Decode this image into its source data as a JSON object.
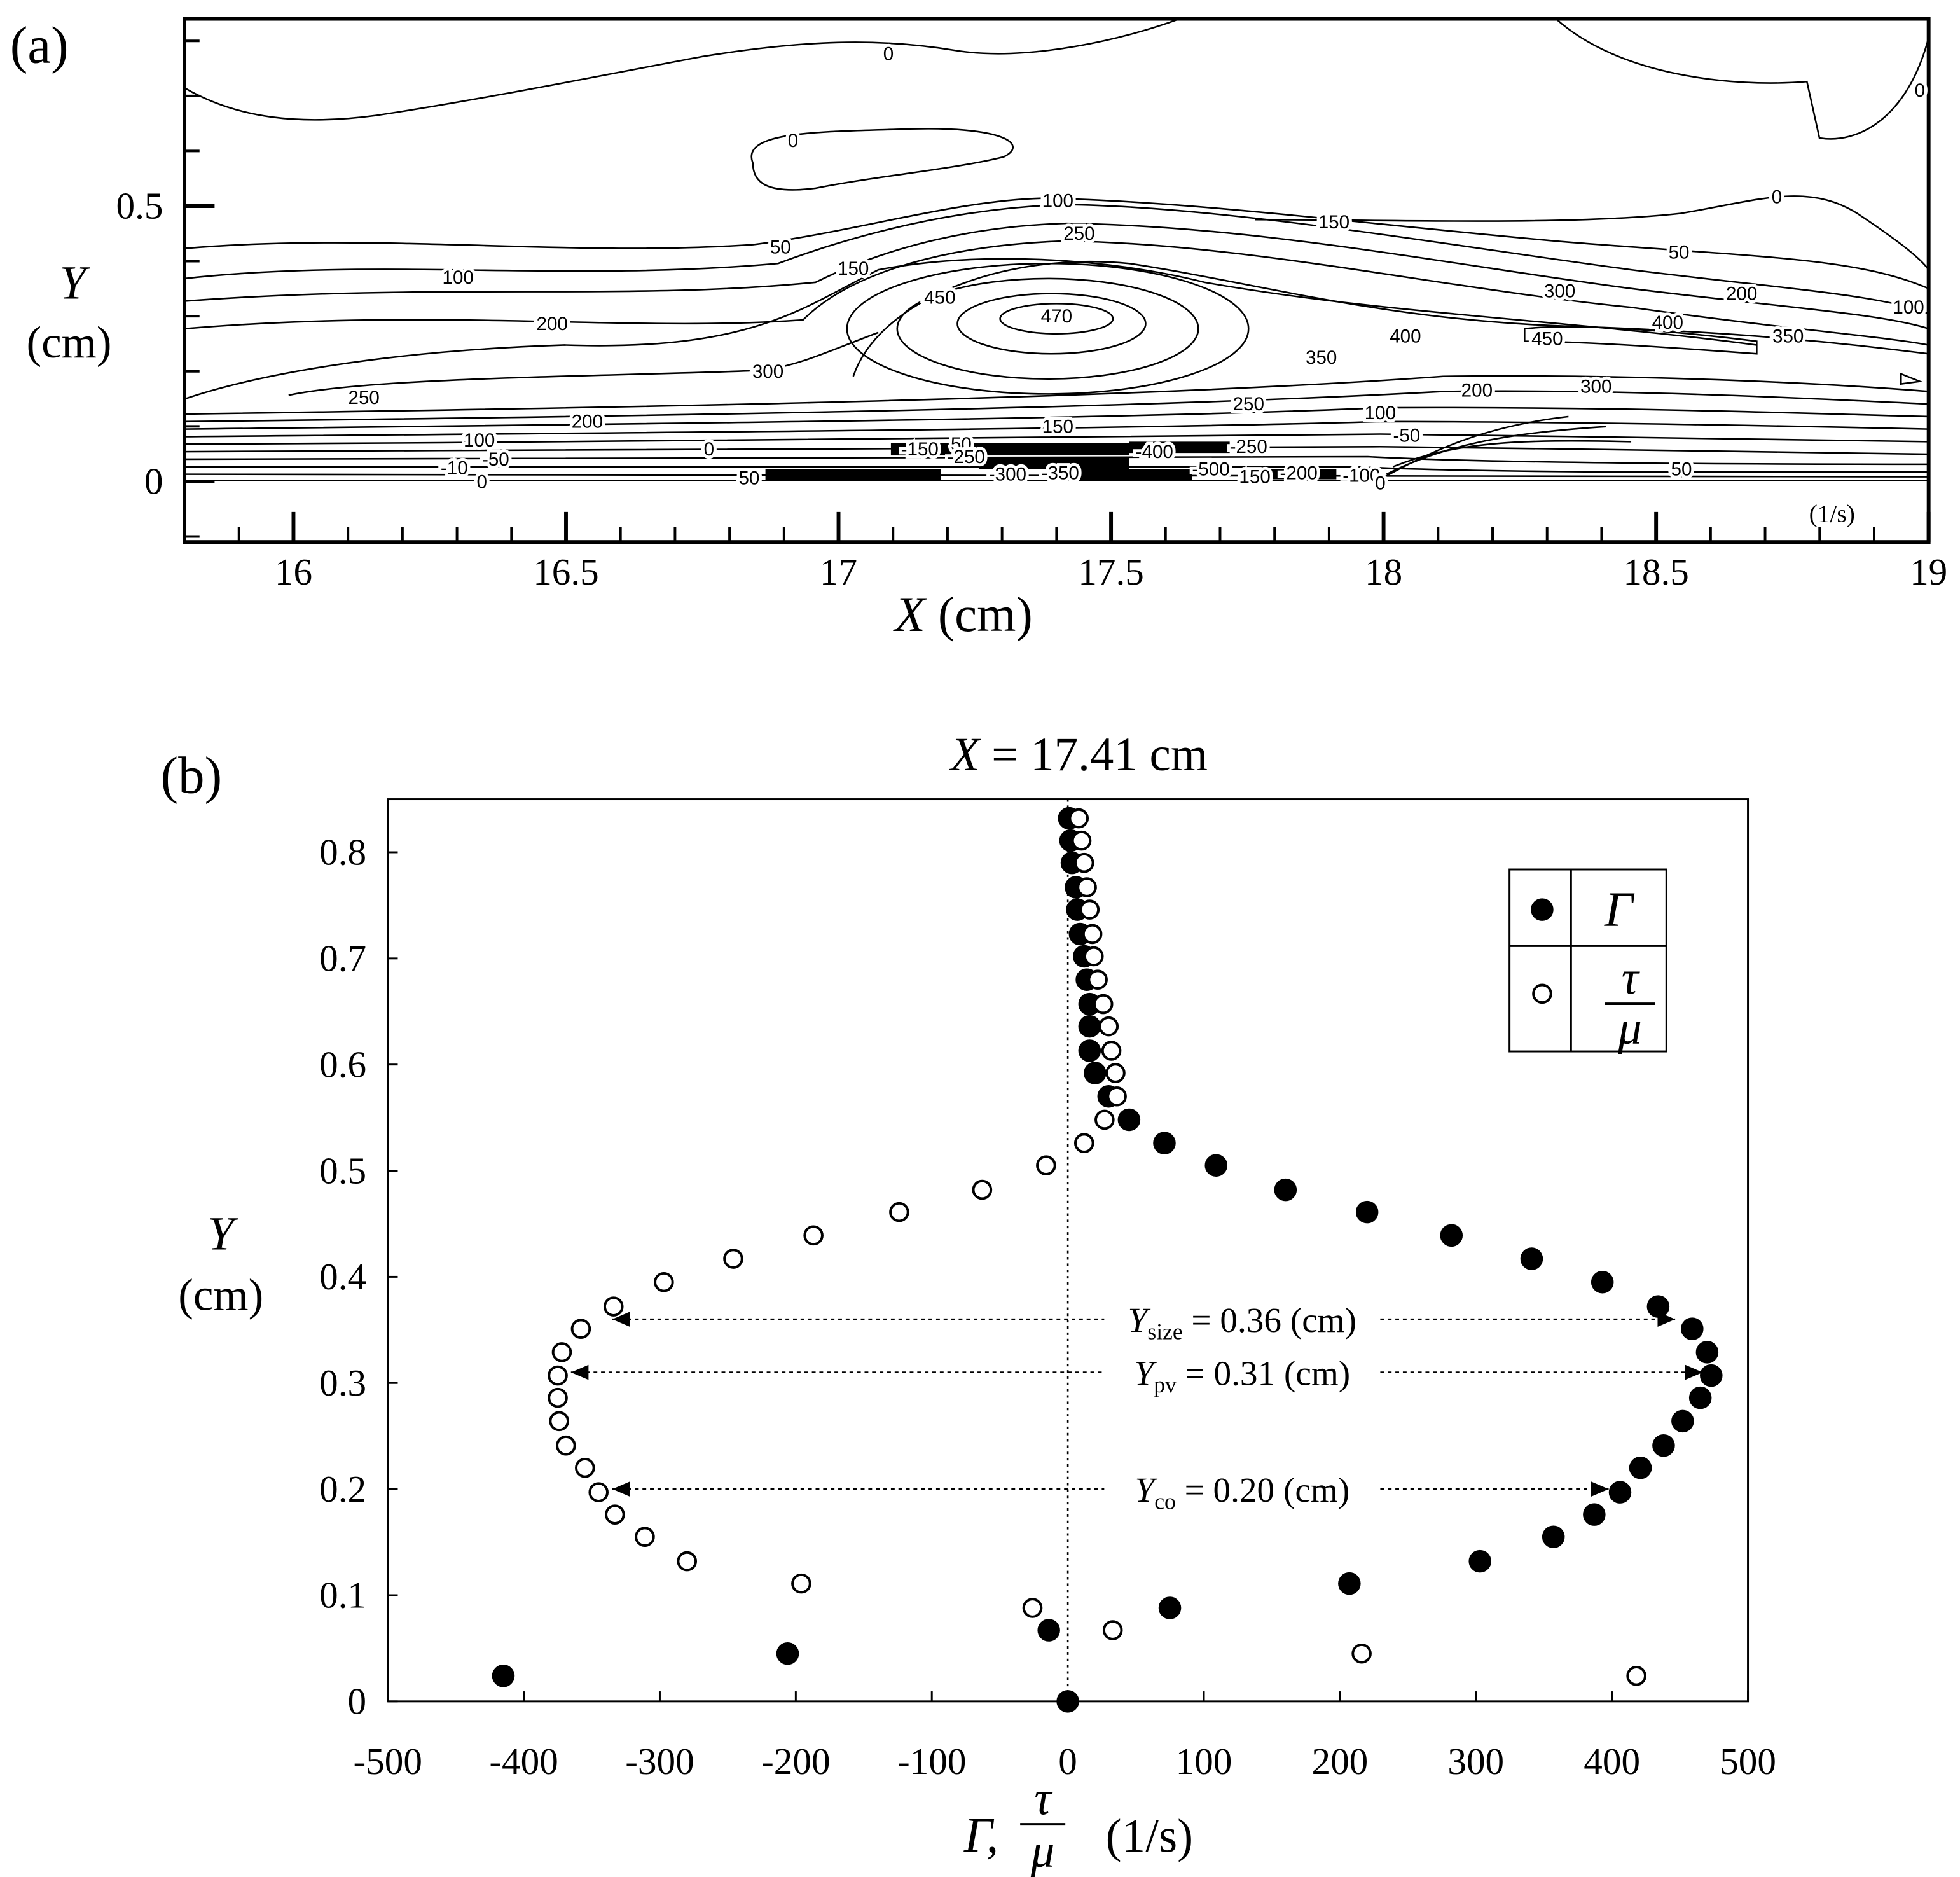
{
  "chart_data": [
    {
      "type": "contour",
      "panel_label": "(a)",
      "xlabel_var": "X",
      "xlabel_unit": "(cm)",
      "ylabel_var": "Y",
      "ylabel_unit": "(cm)",
      "unit_label": "(1/s)",
      "xlim": [
        15.8,
        19
      ],
      "ylim": [
        -0.11,
        0.84
      ],
      "xticks": [
        16,
        16.5,
        17,
        17.5,
        18,
        18.5,
        19
      ],
      "xticks_minor": [
        15.9,
        16.1,
        16.2,
        16.3,
        16.4,
        16.6,
        16.7,
        16.8,
        16.9,
        17.1,
        17.2,
        17.3,
        17.4,
        17.6,
        17.7,
        17.8,
        17.9,
        18.1,
        18.2,
        18.3,
        18.4,
        18.6,
        18.7,
        18.8,
        18.9
      ],
      "yticks": [
        0,
        0.5
      ],
      "yticks_minor": [
        -0.1,
        0.1,
        0.2,
        0.3,
        0.4,
        0.6,
        0.7,
        0.8
      ],
      "contour_labels": [
        "0",
        "0",
        "0",
        "0",
        "100",
        "50",
        "150",
        "250",
        "50",
        "100",
        "150",
        "300",
        "200",
        "100",
        "450",
        "470",
        "200",
        "400",
        "400",
        "350",
        "450",
        "300",
        "350",
        "250",
        "200",
        "300",
        "250",
        "200",
        "150",
        "100",
        "100",
        "-50",
        "0",
        "-150",
        "50",
        "-250",
        "-400",
        "-250",
        "-10",
        "-50",
        "0",
        "50",
        "-300",
        "-350",
        "-500",
        "150",
        "-200",
        "-100",
        "0",
        "50"
      ]
    },
    {
      "type": "scatter",
      "panel_label": "(b)",
      "title_var": "X",
      "title_rest": " = 17.41 cm",
      "xlabel": {
        "lead": "Γ,",
        "num": "τ",
        "den": "μ",
        "unit": "(1/s)"
      },
      "ylabel_var": "Y",
      "ylabel_unit": "(cm)",
      "xlim": [
        -500,
        500
      ],
      "ylim": [
        0,
        0.85
      ],
      "xticks": [
        -500,
        -400,
        -300,
        -200,
        -100,
        0,
        100,
        200,
        300,
        400,
        500
      ],
      "yticks": [
        0,
        0.1,
        0.2,
        0.3,
        0.4,
        0.5,
        0.6,
        0.7,
        0.8
      ],
      "series": [
        {
          "name": "Γ",
          "marker": "filled",
          "color": "#000000",
          "x": [
            0,
            -415,
            -206,
            -14,
            75,
            207,
            303,
            357,
            387,
            406,
            421,
            438,
            452,
            465,
            473,
            470,
            459,
            434,
            393,
            341,
            282,
            220,
            160,
            109,
            71,
            45,
            30,
            20,
            16,
            16,
            16,
            14,
            12,
            9,
            7,
            6,
            3,
            2,
            1
          ],
          "y": [
            0,
            0.024,
            0.045,
            0.067,
            0.088,
            0.111,
            0.132,
            0.155,
            0.176,
            0.197,
            0.22,
            0.241,
            0.264,
            0.286,
            0.307,
            0.329,
            0.351,
            0.372,
            0.395,
            0.417,
            0.439,
            0.461,
            0.482,
            0.505,
            0.526,
            0.548,
            0.57,
            0.592,
            0.613,
            0.636,
            0.657,
            0.68,
            0.702,
            0.723,
            0.746,
            0.767,
            0.79,
            0.811,
            0.832
          ]
        },
        {
          "name": "τ",
          "name_den": "μ",
          "marker": "open",
          "color": "#000000",
          "x": [
            418,
            216,
            33,
            -26,
            -196,
            -280,
            -311,
            -333,
            -345,
            -355,
            -369,
            -374,
            -375,
            -375,
            -372,
            -358,
            -334,
            -297,
            -246,
            -187,
            -124,
            -63,
            -16,
            12,
            27,
            36,
            35,
            32,
            30,
            26,
            22,
            19,
            18,
            16,
            14,
            12,
            10,
            8
          ],
          "y": [
            0.024,
            0.045,
            0.067,
            0.088,
            0.111,
            0.132,
            0.155,
            0.176,
            0.197,
            0.22,
            0.241,
            0.264,
            0.286,
            0.307,
            0.329,
            0.351,
            0.372,
            0.395,
            0.417,
            0.439,
            0.461,
            0.482,
            0.505,
            0.526,
            0.548,
            0.57,
            0.592,
            0.613,
            0.636,
            0.657,
            0.68,
            0.702,
            0.723,
            0.746,
            0.767,
            0.79,
            0.811,
            0.832
          ]
        }
      ],
      "annotations": [
        {
          "var": "Y",
          "sub": "size",
          "text": " = 0.36 (cm)",
          "y": 0.36
        },
        {
          "var": "Y",
          "sub": "pv",
          "text": " = 0.31 (cm)",
          "y": 0.31
        },
        {
          "var": "Y",
          "sub": "co",
          "text": " = 0.20 (cm)",
          "y": 0.2
        }
      ]
    }
  ]
}
